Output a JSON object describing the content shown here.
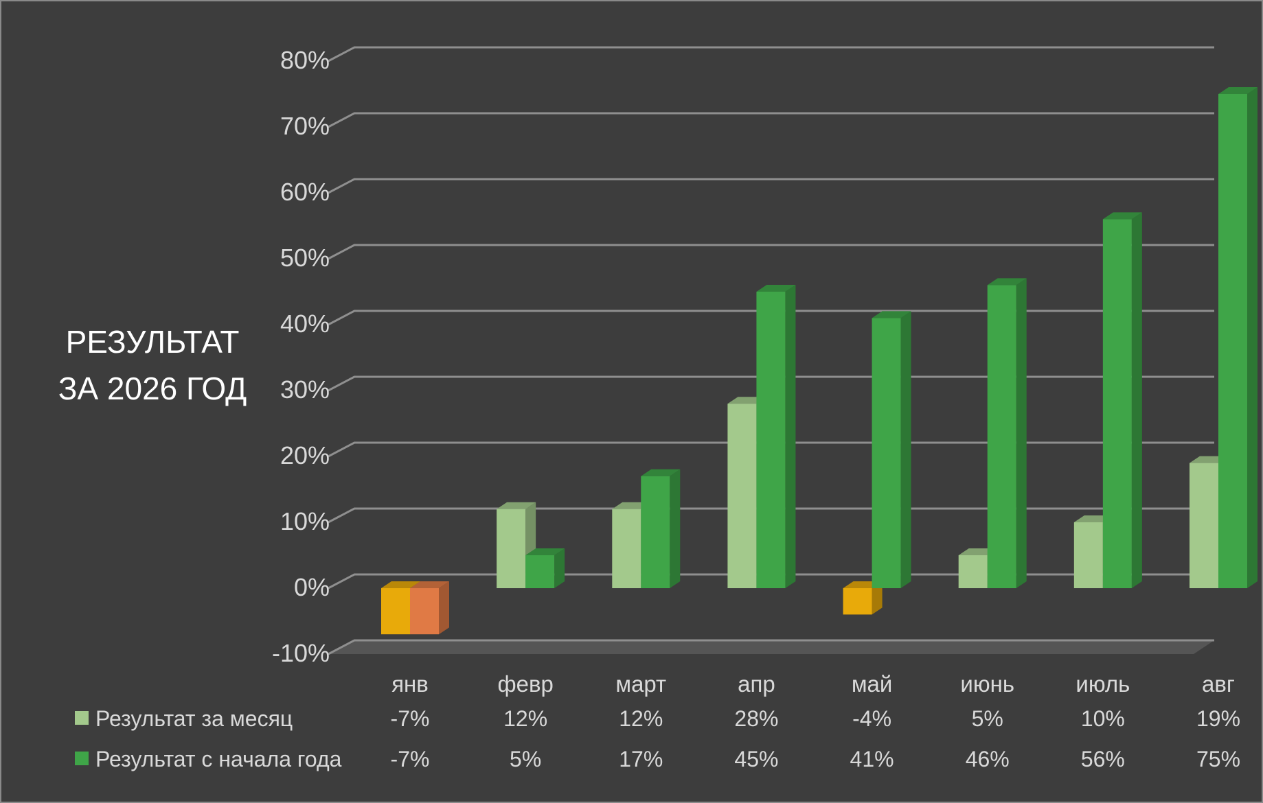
{
  "chart_data": {
    "type": "bar",
    "title_lines": [
      "РЕЗУЛЬТАТ",
      "ЗА 2026 ГОД"
    ],
    "categories": [
      "янв",
      "февр",
      "март",
      "апр",
      "май",
      "июнь",
      "июль",
      "авг"
    ],
    "ylim": [
      -10,
      80
    ],
    "yticks": [
      80,
      70,
      60,
      50,
      40,
      30,
      20,
      10,
      0,
      -10
    ],
    "ytick_labels": [
      "80%",
      "70%",
      "60%",
      "50%",
      "40%",
      "30%",
      "20%",
      "10%",
      "0%",
      "-10%"
    ],
    "grid": true,
    "legend_placement": "bottom data table",
    "series": [
      {
        "name": "Результат за месяц",
        "values": [
          -7,
          12,
          12,
          28,
          -4,
          5,
          10,
          19
        ],
        "labels": [
          "-7%",
          "12%",
          "12%",
          "28%",
          "-4%",
          "5%",
          "10%",
          "19%"
        ],
        "color": "#a3c98c",
        "negative_color": "#e8aa0a"
      },
      {
        "name": "Результат с начала года",
        "values": [
          -7,
          5,
          17,
          45,
          41,
          46,
          56,
          75
        ],
        "labels": [
          "-7%",
          "5%",
          "17%",
          "45%",
          "41%",
          "46%",
          "56%",
          "75%"
        ],
        "color": "#3fa548",
        "negative_color": "#e07a45"
      }
    ]
  }
}
